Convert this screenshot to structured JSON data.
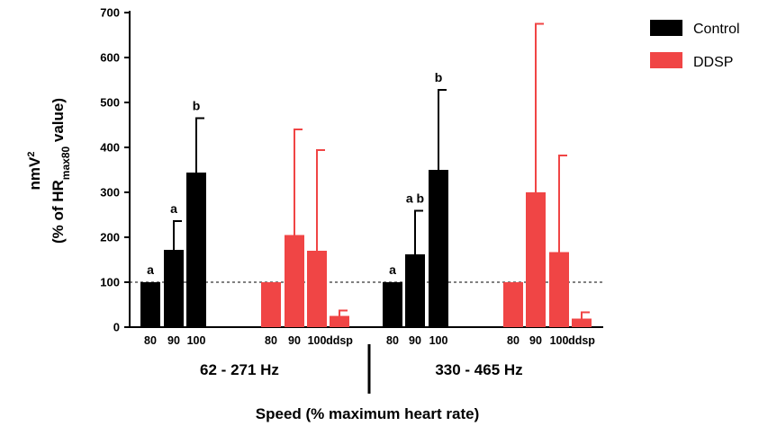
{
  "chart_data": {
    "type": "bar",
    "ylabel_line1": "nmV",
    "ylabel_line1_sup": "2",
    "ylabel_line2_pre": "(% of HR",
    "ylabel_line2_sub": "max80",
    "ylabel_line2_post": " value)",
    "xlabel": "Speed (% maximum heart rate)",
    "ylim": [
      0,
      700
    ],
    "yticks": [
      "0",
      "100",
      "200",
      "300",
      "400",
      "500",
      "600",
      "700"
    ],
    "reference_line": 100,
    "legend": [
      {
        "name": "Control",
        "color": "#000000"
      },
      {
        "name": "DDSP",
        "color": "#f04545"
      }
    ],
    "groups": [
      {
        "label": "62 - 271 Hz",
        "series": [
          {
            "name": "Control",
            "color": "#000000",
            "categories": [
              "80",
              "90",
              "100"
            ],
            "values": [
              100,
              172,
              344
            ],
            "errors": [
              0,
              64,
              121
            ],
            "annotations": [
              "a",
              "a",
              "b"
            ]
          },
          {
            "name": "DDSP",
            "color": "#f04545",
            "categories": [
              "80",
              "90",
              "100",
              "ddsp"
            ],
            "values": [
              100,
              205,
              170,
              25
            ],
            "errors": [
              0,
              235,
              224,
              12
            ],
            "annotations": [
              "",
              "",
              "",
              ""
            ]
          }
        ]
      },
      {
        "label": "330 - 465 Hz",
        "series": [
          {
            "name": "Control",
            "color": "#000000",
            "categories": [
              "80",
              "90",
              "100"
            ],
            "values": [
              100,
              162,
              350
            ],
            "errors": [
              0,
              97,
              178
            ],
            "annotations": [
              "a",
              "a b",
              "b"
            ]
          },
          {
            "name": "DDSP",
            "color": "#f04545",
            "categories": [
              "80",
              "90",
              "100",
              "ddsp"
            ],
            "values": [
              100,
              300,
              167,
              19
            ],
            "errors": [
              0,
              375,
              215,
              14
            ],
            "annotations": [
              "",
              "",
              "",
              ""
            ]
          }
        ]
      }
    ]
  }
}
